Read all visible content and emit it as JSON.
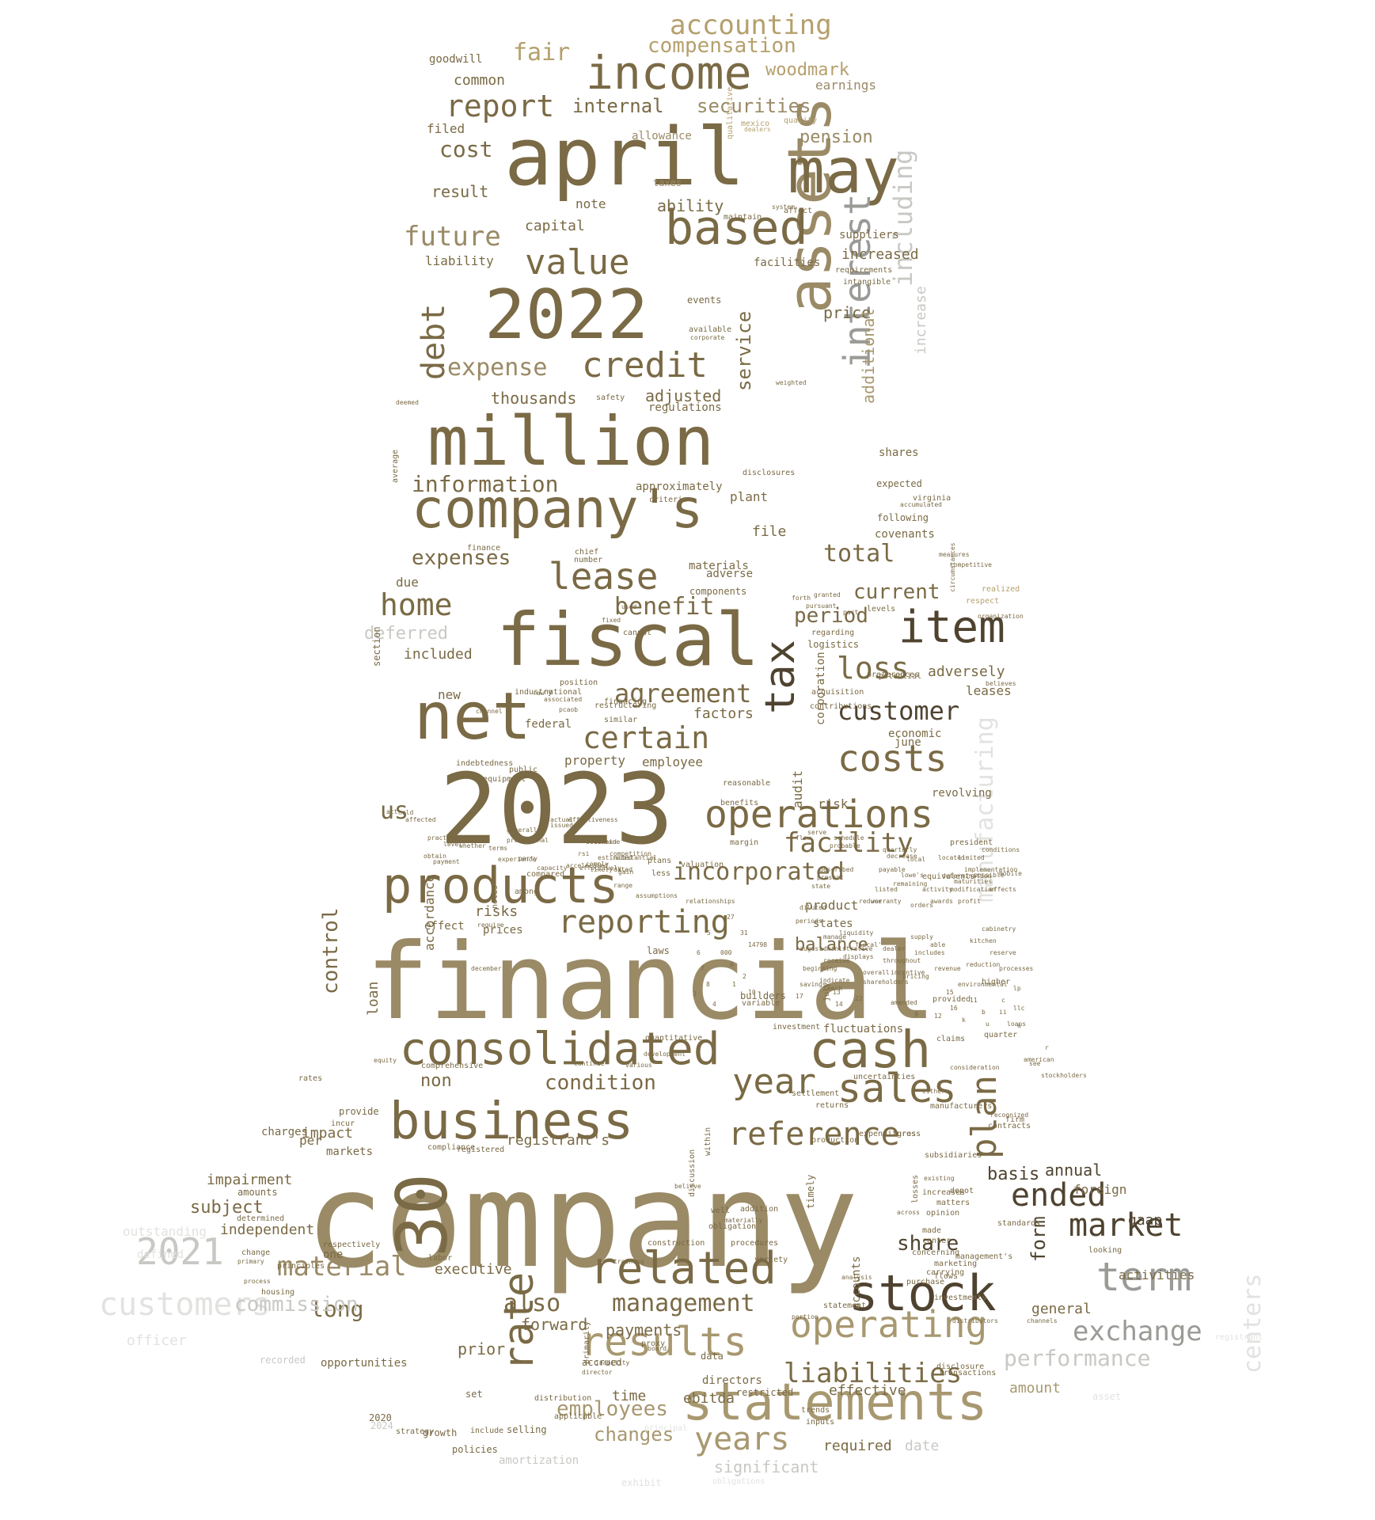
{
  "palette": {
    "background": "#ffffff",
    "dark_brown": "#4f4330",
    "brown": "#6b5b3a",
    "olive": "#7a6a45",
    "tan": "#9a8a66",
    "khaki": "#a89870",
    "gold": "#b5a06d",
    "gray": "#9a9a96",
    "light_gray": "#c8c8c4",
    "pale_gray": "#e2e2e0"
  },
  "words": [
    "company",
    "financial",
    "2023",
    "april",
    "million",
    "fiscal",
    "net",
    "2022",
    "assets",
    "company's",
    "30",
    "business",
    "statements",
    "income",
    "consolidated",
    "may",
    "cash",
    "products",
    "stock",
    "based",
    "operations",
    "related",
    "tax",
    "item",
    "results",
    "term",
    "interest",
    "sales",
    "rate",
    "value",
    "credit",
    "operating",
    "reporting",
    "lease",
    "costs",
    "year",
    "reference",
    "market",
    "plan",
    "ended",
    "exchange",
    "liabilities",
    "management",
    "years",
    "certain",
    "agreement",
    "customer",
    "accounting",
    "report",
    "debt",
    "future",
    "home",
    "including",
    "customers",
    "2021",
    "manufacturing",
    "material",
    "loss",
    "incorporated",
    "facility",
    "benefit",
    "total",
    "expense",
    "expenses",
    "information",
    "internal",
    "securities",
    "compensation",
    "woodmark",
    "fair",
    "cost",
    "pension",
    "performance",
    "condition",
    "control",
    "also",
    "long",
    "share",
    "form",
    "basis",
    "annual",
    "current",
    "period",
    "service",
    "increased",
    "price",
    "adjusted",
    "thousands",
    "employees",
    "changes",
    "payments",
    "prior",
    "significant",
    "commission",
    "deferred",
    "increase",
    "additional",
    "common",
    "earnings",
    "capital",
    "ability",
    "result",
    "note",
    "goodwill",
    "filed",
    "allowance",
    "liability",
    "suppliers",
    "facilities",
    "regulations",
    "adversely",
    "leases",
    "factors",
    "risks",
    "prices",
    "impact",
    "executive",
    "forward",
    "subject",
    "independent",
    "impairment",
    "outstanding",
    "officer",
    "effective",
    "amount",
    "general",
    "gaap",
    "activities",
    "foreign",
    "ebitda",
    "time",
    "required",
    "date",
    "us",
    "non",
    "loan",
    "accordance",
    "registrant's",
    "fluctuations",
    "balance",
    "property",
    "employee",
    "new",
    "included",
    "due",
    "materials",
    "adverse",
    "components",
    "file",
    "shares",
    "expected",
    "following",
    "covenants",
    "approximately",
    "plant",
    "criteria",
    "june",
    "economic",
    "revolving",
    "risk",
    "audit",
    "corporation",
    "product",
    "states",
    "reasonable",
    "benefits",
    "margin",
    "valuation",
    "relationships",
    "payable",
    "equivalents",
    "president",
    "per",
    "charges",
    "markets",
    "compliance",
    "registered",
    "contracts",
    "production",
    "firm",
    "gross",
    "recognized",
    "directors",
    "data",
    "proxy",
    "investments",
    "distributors",
    "standards",
    "opinion",
    "made",
    "accounts",
    "federal",
    "national",
    "industry",
    "position",
    "restructuring",
    "section",
    "average",
    "deemed",
    "levels",
    "taxes",
    "qualitative",
    "mexico",
    "quality",
    "dealers",
    "system",
    "affect",
    "maintain",
    "requirements",
    "intangible",
    "events",
    "available",
    "corporate",
    "weighted",
    "safety",
    "disclosures",
    "plans",
    "less",
    "effect",
    "laws",
    "december",
    "builders",
    "variable",
    "investment",
    "claims",
    "provided",
    "amended",
    "july",
    "higher",
    "quarter",
    "returns",
    "expenditures",
    "subsidiaries",
    "existing",
    "losses",
    "purchase",
    "carrying",
    "flows",
    "marketing",
    "transactions",
    "disclosure",
    "looking",
    "respectively",
    "statement",
    "defined",
    "one",
    "change",
    "principles",
    "labor",
    "determined",
    "amounts",
    "across",
    "provide",
    "incur",
    "rates",
    "equity",
    "comprehensive",
    "2020",
    "2024",
    "growth",
    "strategy",
    "policies",
    "include",
    "selling",
    "set",
    "distribution",
    "applicable",
    "amortization",
    "principal",
    "exhibit",
    "obligations",
    "restricted",
    "trends",
    "inputs",
    "portion",
    "channels",
    "american",
    "loans",
    "centers",
    "asset",
    "registrant",
    "recorded",
    "opportunities",
    "housing",
    "process",
    "primary",
    "training",
    "materially",
    "continue",
    "various",
    "development",
    "settlement",
    "quantitative",
    "uncertainties",
    "environmental",
    "manufacturers",
    "consideration",
    "either",
    "depot",
    "center",
    "concerning",
    "analysis",
    "believe",
    "well",
    "increases",
    "matters",
    "management's",
    "variety",
    "construction",
    "procedures",
    "addition",
    "obligation",
    "discussion",
    "within",
    "timely",
    "primarily",
    "accrued",
    "board",
    "director",
    "inability",
    "regarding",
    "logistics",
    "acquisition",
    "contributions",
    "preferences",
    "potential",
    "believes",
    "organization",
    "realized",
    "respect",
    "circumstances",
    "virginia",
    "accumulated",
    "measures",
    "competitive",
    "finance",
    "chief",
    "number",
    "granted",
    "pursuant",
    "forth",
    "part",
    "used",
    "cannot",
    "fixed",
    "raw",
    "associated",
    "channel",
    "similar",
    "financing",
    "pcaob",
    "indebtedness",
    "public",
    "equipment",
    "act",
    "affected",
    "whether",
    "actual",
    "issued",
    "effectiveness",
    "compared",
    "among",
    "notes",
    "require",
    "practices",
    "level",
    "obtain",
    "payment",
    "held",
    "demand",
    "substantial",
    "competition",
    "gain",
    "range",
    "assumptions",
    "present",
    "described",
    "state",
    "diluted",
    "periods",
    "effectively",
    "promotional",
    "determine",
    "estimated",
    "comply",
    "generally",
    "capacity",
    "terms",
    "experience",
    "party",
    "rsi",
    "likely",
    "accelerated",
    "dated",
    "flow",
    "serve",
    "schedule",
    "probable",
    "quarterly",
    "decrease",
    "conditions",
    "located",
    "determination",
    "limited",
    "implementation",
    "local",
    "remaining",
    "listed",
    "warranty",
    "reduce",
    "activity",
    "lowe's",
    "modification",
    "possible",
    "mobile",
    "effects",
    "maturities",
    "profit",
    "awards",
    "orders",
    "supply",
    "able",
    "includes",
    "revenue",
    "reduction",
    "kitchen",
    "cabinetry",
    "reserve",
    "processes",
    "pricing",
    "receive",
    "beginning",
    "administrative",
    "indicate",
    "shareholders",
    "displays",
    "overall",
    "dealer",
    "throughout",
    "incentive",
    "manage",
    "liquidity",
    "august",
    "fiscal'",
    "check",
    "savings",
    "13",
    "14",
    "17",
    "22",
    "27",
    "31",
    "14798",
    "000",
    "0",
    "2",
    "1",
    "10",
    "4",
    "5",
    "6",
    "7",
    "8",
    "3",
    "9",
    "12",
    "15",
    "16",
    "11",
    "k",
    "b",
    "u",
    "c",
    "ii",
    "lp",
    "llc",
    "a",
    "r",
    "see",
    "stockholders"
  ]
}
